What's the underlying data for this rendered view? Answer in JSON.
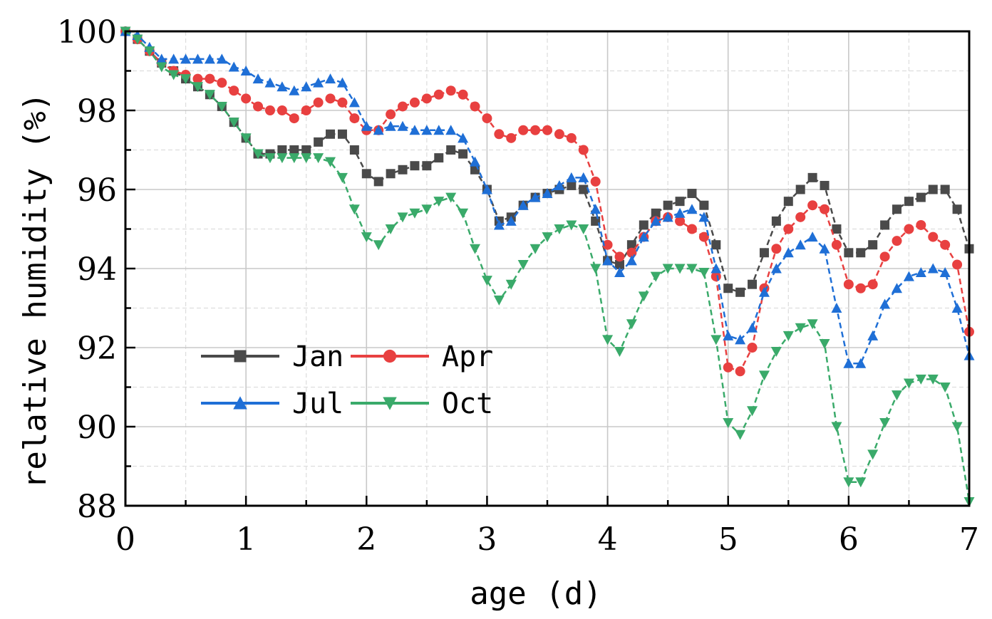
{
  "chart_data": {
    "type": "line",
    "title": "",
    "xlabel": "age (d)",
    "ylabel": "relative humidity (%)",
    "xlim": [
      0,
      7
    ],
    "ylim": [
      88,
      100
    ],
    "xticks": [
      0,
      1,
      2,
      3,
      4,
      5,
      6,
      7
    ],
    "yticks": [
      88,
      90,
      92,
      94,
      96,
      98,
      100
    ],
    "grid": true,
    "legend_position": "lower-left",
    "series": [
      {
        "name": "Jan",
        "color": "#4a4a4a",
        "marker": "square",
        "x": [
          0,
          0.1,
          0.2,
          0.3,
          0.4,
          0.5,
          0.6,
          0.7,
          0.8,
          0.9,
          1.0,
          1.1,
          1.2,
          1.3,
          1.4,
          1.5,
          1.6,
          1.7,
          1.8,
          1.9,
          2.0,
          2.1,
          2.2,
          2.3,
          2.4,
          2.5,
          2.6,
          2.7,
          2.8,
          2.9,
          3.0,
          3.1,
          3.2,
          3.3,
          3.4,
          3.5,
          3.6,
          3.7,
          3.8,
          3.9,
          4.0,
          4.1,
          4.2,
          4.3,
          4.4,
          4.5,
          4.6,
          4.7,
          4.8,
          4.9,
          5.0,
          5.1,
          5.2,
          5.3,
          5.4,
          5.5,
          5.6,
          5.7,
          5.8,
          5.9,
          6.0,
          6.1,
          6.2,
          6.3,
          6.4,
          6.5,
          6.6,
          6.7,
          6.8,
          6.9,
          7.0
        ],
        "values": [
          100,
          99.8,
          99.5,
          99.2,
          99.0,
          98.8,
          98.6,
          98.4,
          98.1,
          97.7,
          97.3,
          96.9,
          96.9,
          97.0,
          97.0,
          97.0,
          97.2,
          97.4,
          97.4,
          97.0,
          96.4,
          96.2,
          96.4,
          96.5,
          96.6,
          96.6,
          96.8,
          97.0,
          96.9,
          96.5,
          96.0,
          95.2,
          95.3,
          95.6,
          95.8,
          95.9,
          96.0,
          96.1,
          96.0,
          95.2,
          94.2,
          94.1,
          94.6,
          95.1,
          95.4,
          95.6,
          95.7,
          95.9,
          95.6,
          94.6,
          93.5,
          93.4,
          93.6,
          94.4,
          95.2,
          95.7,
          96.0,
          96.3,
          96.1,
          95.0,
          94.4,
          94.4,
          94.6,
          95.1,
          95.5,
          95.7,
          95.8,
          96.0,
          96.0,
          95.5,
          94.5
        ]
      },
      {
        "name": "Apr",
        "color": "#e84040",
        "marker": "circle",
        "x": [
          0,
          0.1,
          0.2,
          0.3,
          0.4,
          0.5,
          0.6,
          0.7,
          0.8,
          0.9,
          1.0,
          1.1,
          1.2,
          1.3,
          1.4,
          1.5,
          1.6,
          1.7,
          1.8,
          1.9,
          2.0,
          2.1,
          2.2,
          2.3,
          2.4,
          2.5,
          2.6,
          2.7,
          2.8,
          2.9,
          3.0,
          3.1,
          3.2,
          3.3,
          3.4,
          3.5,
          3.6,
          3.7,
          3.8,
          3.9,
          4.0,
          4.1,
          4.2,
          4.3,
          4.4,
          4.5,
          4.6,
          4.7,
          4.8,
          4.9,
          5.0,
          5.1,
          5.2,
          5.3,
          5.4,
          5.5,
          5.6,
          5.7,
          5.8,
          5.9,
          6.0,
          6.1,
          6.2,
          6.3,
          6.4,
          6.5,
          6.6,
          6.7,
          6.8,
          6.9,
          7.0
        ],
        "values": [
          100,
          99.8,
          99.5,
          99.2,
          99.0,
          98.9,
          98.8,
          98.8,
          98.7,
          98.5,
          98.3,
          98.1,
          98.0,
          98.0,
          97.8,
          98.0,
          98.2,
          98.3,
          98.2,
          97.8,
          97.5,
          97.5,
          97.9,
          98.1,
          98.2,
          98.3,
          98.4,
          98.5,
          98.4,
          98.1,
          97.8,
          97.4,
          97.3,
          97.5,
          97.5,
          97.5,
          97.4,
          97.3,
          97.0,
          96.2,
          94.6,
          94.3,
          94.4,
          94.8,
          95.2,
          95.3,
          95.2,
          95.0,
          94.8,
          93.8,
          91.5,
          91.4,
          92.0,
          93.5,
          94.5,
          95.0,
          95.3,
          95.6,
          95.5,
          94.6,
          93.6,
          93.5,
          93.6,
          94.3,
          94.7,
          95.0,
          95.1,
          94.8,
          94.6,
          94.1,
          92.4
        ]
      },
      {
        "name": "Jul",
        "color": "#1f6fd6",
        "marker": "triangle-up",
        "x": [
          0,
          0.1,
          0.2,
          0.3,
          0.4,
          0.5,
          0.6,
          0.7,
          0.8,
          0.9,
          1.0,
          1.1,
          1.2,
          1.3,
          1.4,
          1.5,
          1.6,
          1.7,
          1.8,
          1.9,
          2.0,
          2.1,
          2.2,
          2.3,
          2.4,
          2.5,
          2.6,
          2.7,
          2.8,
          2.9,
          3.0,
          3.1,
          3.2,
          3.3,
          3.4,
          3.5,
          3.6,
          3.7,
          3.8,
          3.9,
          4.0,
          4.1,
          4.2,
          4.3,
          4.4,
          4.5,
          4.6,
          4.7,
          4.8,
          4.9,
          5.0,
          5.1,
          5.2,
          5.3,
          5.4,
          5.5,
          5.6,
          5.7,
          5.8,
          5.9,
          6.0,
          6.1,
          6.2,
          6.3,
          6.4,
          6.5,
          6.6,
          6.7,
          6.8,
          6.9,
          7.0
        ],
        "values": [
          100,
          99.9,
          99.6,
          99.3,
          99.3,
          99.3,
          99.3,
          99.3,
          99.3,
          99.1,
          99.0,
          98.8,
          98.7,
          98.6,
          98.5,
          98.6,
          98.7,
          98.8,
          98.7,
          98.2,
          97.6,
          97.5,
          97.6,
          97.6,
          97.5,
          97.5,
          97.5,
          97.5,
          97.3,
          96.7,
          96.0,
          95.1,
          95.2,
          95.6,
          95.8,
          95.9,
          96.1,
          96.3,
          96.3,
          95.5,
          94.2,
          93.9,
          94.2,
          94.8,
          95.2,
          95.3,
          95.4,
          95.5,
          95.3,
          94.0,
          92.3,
          92.2,
          92.5,
          93.4,
          94.0,
          94.4,
          94.6,
          94.8,
          94.5,
          93.0,
          91.6,
          91.6,
          92.3,
          93.1,
          93.5,
          93.8,
          93.9,
          94.0,
          93.9,
          93.0,
          91.8
        ]
      },
      {
        "name": "Oct",
        "color": "#3aaa6a",
        "marker": "triangle-down",
        "x": [
          0,
          0.1,
          0.2,
          0.3,
          0.4,
          0.5,
          0.6,
          0.7,
          0.8,
          0.9,
          1.0,
          1.1,
          1.2,
          1.3,
          1.4,
          1.5,
          1.6,
          1.7,
          1.8,
          1.9,
          2.0,
          2.1,
          2.2,
          2.3,
          2.4,
          2.5,
          2.6,
          2.7,
          2.8,
          2.9,
          3.0,
          3.1,
          3.2,
          3.3,
          3.4,
          3.5,
          3.6,
          3.7,
          3.8,
          3.9,
          4.0,
          4.1,
          4.2,
          4.3,
          4.4,
          4.5,
          4.6,
          4.7,
          4.8,
          4.9,
          5.0,
          5.1,
          5.2,
          5.3,
          5.4,
          5.5,
          5.6,
          5.7,
          5.8,
          5.9,
          6.0,
          6.1,
          6.2,
          6.3,
          6.4,
          6.5,
          6.6,
          6.7,
          6.8,
          6.9,
          7.0
        ],
        "values": [
          100,
          99.8,
          99.5,
          99.1,
          98.9,
          98.8,
          98.6,
          98.4,
          98.1,
          97.7,
          97.3,
          96.9,
          96.8,
          96.8,
          96.8,
          96.8,
          96.8,
          96.7,
          96.3,
          95.5,
          94.8,
          94.6,
          95.0,
          95.3,
          95.4,
          95.5,
          95.7,
          95.8,
          95.4,
          94.5,
          93.7,
          93.2,
          93.6,
          94.1,
          94.5,
          94.8,
          95.0,
          95.1,
          95.0,
          94.0,
          92.2,
          91.9,
          92.6,
          93.3,
          93.8,
          94.0,
          94.0,
          94.0,
          93.9,
          92.2,
          90.1,
          89.8,
          90.4,
          91.3,
          91.9,
          92.3,
          92.5,
          92.6,
          92.1,
          90.0,
          88.6,
          88.6,
          89.3,
          90.1,
          90.8,
          91.1,
          91.2,
          91.2,
          91.0,
          90.0,
          88.1
        ]
      }
    ]
  }
}
